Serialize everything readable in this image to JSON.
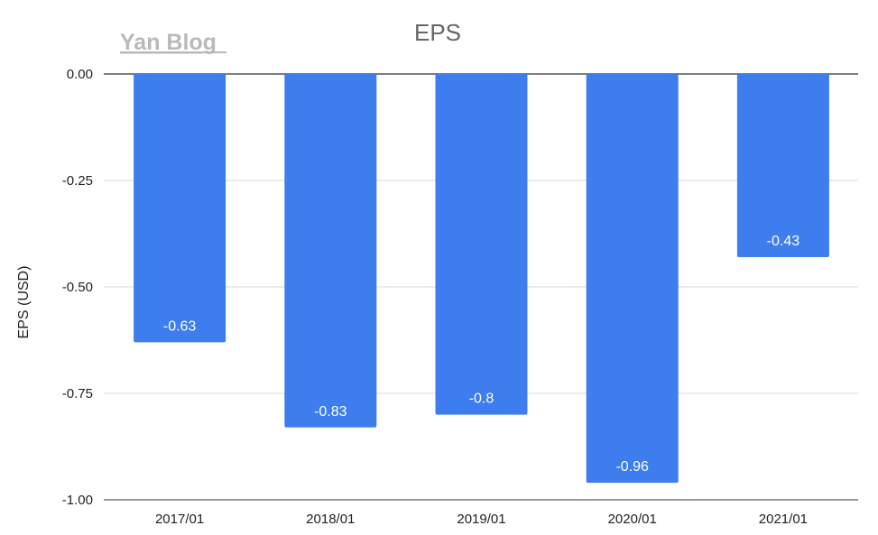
{
  "watermark": "Yan Blog",
  "colors": {
    "bar": "#3d7ded",
    "grid": "#d9d9d9",
    "zero_line": "#333333"
  },
  "chart_data": {
    "type": "bar",
    "title": "EPS",
    "xlabel": "",
    "ylabel": "EPS (USD)",
    "categories": [
      "2017/01",
      "2018/01",
      "2019/01",
      "2020/01",
      "2021/01"
    ],
    "values": [
      -0.63,
      -0.83,
      -0.8,
      -0.96,
      -0.43
    ],
    "data_labels": [
      "-0.63",
      "-0.83",
      "-0.8",
      "-0.96",
      "-0.43"
    ],
    "ylim": [
      -1.0,
      0.0
    ],
    "yticks": [
      "0.00",
      "-0.25",
      "-0.50",
      "-0.75",
      "-1.00"
    ],
    "ytick_values": [
      0,
      -0.25,
      -0.5,
      -0.75,
      -1.0
    ],
    "grid": true,
    "legend": "none"
  }
}
